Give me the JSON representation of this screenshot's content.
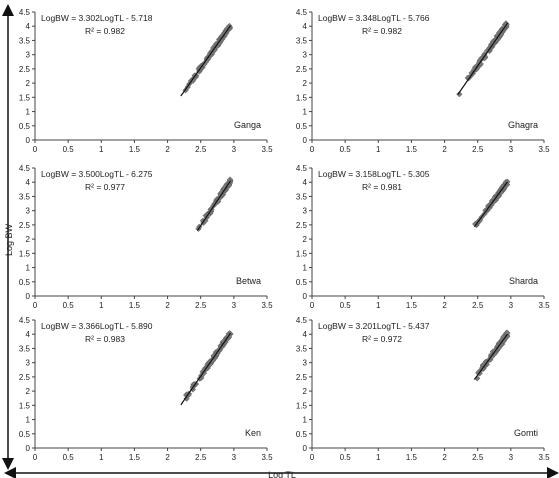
{
  "figure": {
    "y_axis_label": "Log BW",
    "x_axis_label": "Log TL"
  },
  "chart_data": [
    {
      "type": "scatter",
      "panel": "Ganga",
      "equation": "LogBW = 3.302LogTL - 5.718",
      "r2_label": "R² = 0.982",
      "xlim": [
        0,
        3.5
      ],
      "ylim": [
        0,
        4.5
      ],
      "x_ticks": [
        "0",
        "0.5",
        "1",
        "1.5",
        "2",
        "2.5",
        "3",
        "3.5"
      ],
      "y_ticks": [
        "0",
        "0.5",
        "1",
        "1.5",
        "2",
        "2.5",
        "3",
        "3.5",
        "4",
        "4.5"
      ],
      "trendline": {
        "slope": 3.302,
        "intercept": -5.718,
        "x_range": [
          2.2,
          2.95
        ]
      },
      "x_range": [
        2.2,
        2.95
      ],
      "spread": 0.08,
      "grid": false
    },
    {
      "type": "scatter",
      "panel": "Ghagra",
      "equation": "LogBW = 3.348LogTL - 5.766",
      "r2_label": "R² = 0.982",
      "xlim": [
        0,
        3.5
      ],
      "ylim": [
        0,
        4.5
      ],
      "x_ticks": [
        "0",
        "0.5",
        "1",
        "1.5",
        "2",
        "2.5",
        "3",
        "3.5"
      ],
      "y_ticks": [
        "0",
        "0.5",
        "1",
        "1.5",
        "2",
        "2.5",
        "3",
        "3.5",
        "4",
        "4.5"
      ],
      "trendline": {
        "slope": 3.348,
        "intercept": -5.766,
        "x_range": [
          2.2,
          2.95
        ]
      },
      "x_range": [
        2.2,
        2.95
      ],
      "spread": 0.09,
      "grid": false
    },
    {
      "type": "scatter",
      "panel": "Betwa",
      "equation": "LogBW = 3.500LogTL - 6.275",
      "r2_label": "R² = 0.977",
      "xlim": [
        0,
        3.5
      ],
      "ylim": [
        0,
        4.5
      ],
      "x_ticks": [
        "0",
        "0.5",
        "1",
        "1.5",
        "2",
        "2.5",
        "3",
        "3.5"
      ],
      "y_ticks": [
        "0",
        "0.5",
        "1",
        "1.5",
        "2",
        "2.5",
        "3",
        "3.5",
        "4",
        "4.5"
      ],
      "trendline": {
        "slope": 3.5,
        "intercept": -6.275,
        "x_range": [
          2.45,
          2.95
        ]
      },
      "x_range": [
        2.45,
        2.95
      ],
      "spread": 0.09,
      "grid": false
    },
    {
      "type": "scatter",
      "panel": "Sharda",
      "equation": "LogBW = 3.158LogTL - 5.305",
      "r2_label": "R² = 0.981",
      "xlim": [
        0,
        3.5
      ],
      "ylim": [
        0,
        4.5
      ],
      "x_ticks": [
        "0",
        "0.5",
        "1",
        "1.5",
        "2",
        "2.5",
        "3",
        "3.5"
      ],
      "y_ticks": [
        "0",
        "0.5",
        "1",
        "1.5",
        "2",
        "2.5",
        "3",
        "3.5",
        "4",
        "4.5"
      ],
      "trendline": {
        "slope": 3.158,
        "intercept": -5.305,
        "x_range": [
          2.45,
          2.95
        ]
      },
      "x_range": [
        2.45,
        2.95
      ],
      "spread": 0.08,
      "grid": false
    },
    {
      "type": "scatter",
      "panel": "Ken",
      "equation": "LogBW = 3.366LogTL - 5.890",
      "r2_label": "R² = 0.983",
      "xlim": [
        0,
        3.5
      ],
      "ylim": [
        0,
        4.5
      ],
      "x_ticks": [
        "0",
        "0.5",
        "1",
        "1.5",
        "2",
        "2.5",
        "3",
        "3.5"
      ],
      "y_ticks": [
        "0",
        "0.5",
        "1",
        "1.5",
        "2",
        "2.5",
        "3",
        "3.5",
        "4",
        "4.5"
      ],
      "trendline": {
        "slope": 3.366,
        "intercept": -5.89,
        "x_range": [
          2.2,
          2.95
        ]
      },
      "x_range": [
        2.2,
        2.95
      ],
      "spread": 0.08,
      "grid": false
    },
    {
      "type": "scatter",
      "panel": "Gomti",
      "equation": "LogBW = 3.201LogTL - 5.437",
      "r2_label": "R² = 0.972",
      "xlim": [
        0,
        3.5
      ],
      "ylim": [
        0,
        4.5
      ],
      "x_ticks": [
        "0",
        "0.5",
        "1",
        "1.5",
        "2",
        "2.5",
        "3",
        "3.5"
      ],
      "y_ticks": [
        "0",
        "0.5",
        "1",
        "1.5",
        "2",
        "2.5",
        "3",
        "3.5",
        "4",
        "4.5"
      ],
      "trendline": {
        "slope": 3.201,
        "intercept": -5.437,
        "x_range": [
          2.45,
          2.95
        ]
      },
      "x_range": [
        2.45,
        2.95
      ],
      "spread": 0.1,
      "grid": false
    }
  ],
  "colors": {
    "marker": "#7a7a7a",
    "marker_stroke": "#5a5a5a",
    "trendline": "#111111",
    "axis": "#444444"
  }
}
